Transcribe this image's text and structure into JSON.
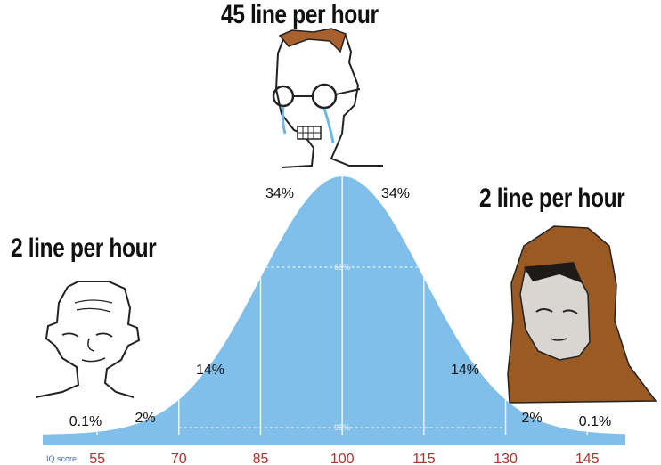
{
  "captions": {
    "top": "45 line per hour",
    "left": "2 line per hour",
    "right": "2 line per hour"
  },
  "chart_data": {
    "type": "area",
    "title": "",
    "xlabel": "IQ score",
    "ylabel": "",
    "distribution": {
      "mean": 100,
      "sd": 15
    },
    "xlim": [
      45,
      152
    ],
    "x_ticks": [
      55,
      70,
      85,
      100,
      115,
      130,
      145
    ],
    "band_labels": [
      {
        "label": "0.1%",
        "x": 47.5
      },
      {
        "label": "2%",
        "x": 62.5
      },
      {
        "label": "14%",
        "x": 77.5
      },
      {
        "label": "34%",
        "x": 92.5
      },
      {
        "label": "34%",
        "x": 107.5
      },
      {
        "label": "14%",
        "x": 122.5
      },
      {
        "label": "2%",
        "x": 137.5
      },
      {
        "label": "0.1%",
        "x": 152.5
      }
    ],
    "range_labels": [
      {
        "label": "68%",
        "from": 85,
        "to": 115
      },
      {
        "label": "95%",
        "from": 70,
        "to": 130
      }
    ],
    "colors": {
      "fill": "#7fbfe9",
      "axis": "#7fbfe9",
      "tick_text": "#b5302a",
      "axis_label": "#3a6fb0"
    }
  }
}
